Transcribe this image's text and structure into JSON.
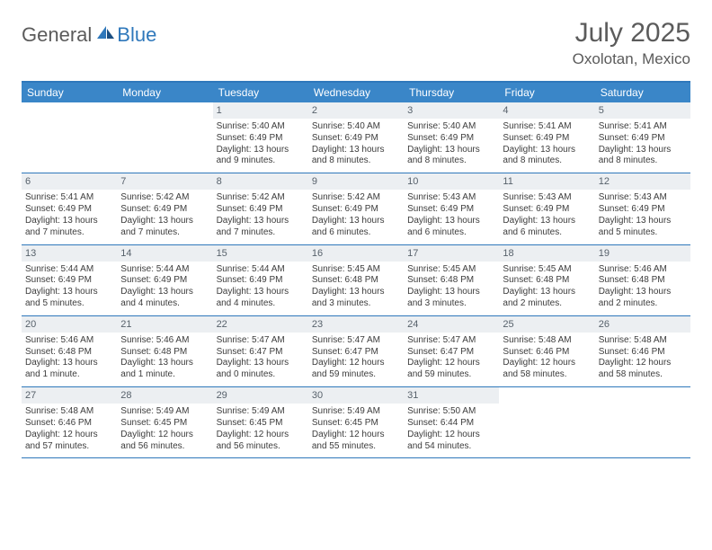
{
  "logo": {
    "general": "General",
    "blue": "Blue"
  },
  "title": "July 2025",
  "location": "Oxolotan, Mexico",
  "colors": {
    "header_bar": "#3a86c8",
    "rule": "#2f78bb",
    "daynum_bg": "#eceff2",
    "text": "#3c3c3c",
    "muted": "#5b5b5b"
  },
  "dow": [
    "Sunday",
    "Monday",
    "Tuesday",
    "Wednesday",
    "Thursday",
    "Friday",
    "Saturday"
  ],
  "weeks": [
    [
      null,
      null,
      {
        "n": "1",
        "sr": "5:40 AM",
        "ss": "6:49 PM",
        "dl1": "Daylight: 13 hours",
        "dl2": "and 9 minutes."
      },
      {
        "n": "2",
        "sr": "5:40 AM",
        "ss": "6:49 PM",
        "dl1": "Daylight: 13 hours",
        "dl2": "and 8 minutes."
      },
      {
        "n": "3",
        "sr": "5:40 AM",
        "ss": "6:49 PM",
        "dl1": "Daylight: 13 hours",
        "dl2": "and 8 minutes."
      },
      {
        "n": "4",
        "sr": "5:41 AM",
        "ss": "6:49 PM",
        "dl1": "Daylight: 13 hours",
        "dl2": "and 8 minutes."
      },
      {
        "n": "5",
        "sr": "5:41 AM",
        "ss": "6:49 PM",
        "dl1": "Daylight: 13 hours",
        "dl2": "and 8 minutes."
      }
    ],
    [
      {
        "n": "6",
        "sr": "5:41 AM",
        "ss": "6:49 PM",
        "dl1": "Daylight: 13 hours",
        "dl2": "and 7 minutes."
      },
      {
        "n": "7",
        "sr": "5:42 AM",
        "ss": "6:49 PM",
        "dl1": "Daylight: 13 hours",
        "dl2": "and 7 minutes."
      },
      {
        "n": "8",
        "sr": "5:42 AM",
        "ss": "6:49 PM",
        "dl1": "Daylight: 13 hours",
        "dl2": "and 7 minutes."
      },
      {
        "n": "9",
        "sr": "5:42 AM",
        "ss": "6:49 PM",
        "dl1": "Daylight: 13 hours",
        "dl2": "and 6 minutes."
      },
      {
        "n": "10",
        "sr": "5:43 AM",
        "ss": "6:49 PM",
        "dl1": "Daylight: 13 hours",
        "dl2": "and 6 minutes."
      },
      {
        "n": "11",
        "sr": "5:43 AM",
        "ss": "6:49 PM",
        "dl1": "Daylight: 13 hours",
        "dl2": "and 6 minutes."
      },
      {
        "n": "12",
        "sr": "5:43 AM",
        "ss": "6:49 PM",
        "dl1": "Daylight: 13 hours",
        "dl2": "and 5 minutes."
      }
    ],
    [
      {
        "n": "13",
        "sr": "5:44 AM",
        "ss": "6:49 PM",
        "dl1": "Daylight: 13 hours",
        "dl2": "and 5 minutes."
      },
      {
        "n": "14",
        "sr": "5:44 AM",
        "ss": "6:49 PM",
        "dl1": "Daylight: 13 hours",
        "dl2": "and 4 minutes."
      },
      {
        "n": "15",
        "sr": "5:44 AM",
        "ss": "6:49 PM",
        "dl1": "Daylight: 13 hours",
        "dl2": "and 4 minutes."
      },
      {
        "n": "16",
        "sr": "5:45 AM",
        "ss": "6:48 PM",
        "dl1": "Daylight: 13 hours",
        "dl2": "and 3 minutes."
      },
      {
        "n": "17",
        "sr": "5:45 AM",
        "ss": "6:48 PM",
        "dl1": "Daylight: 13 hours",
        "dl2": "and 3 minutes."
      },
      {
        "n": "18",
        "sr": "5:45 AM",
        "ss": "6:48 PM",
        "dl1": "Daylight: 13 hours",
        "dl2": "and 2 minutes."
      },
      {
        "n": "19",
        "sr": "5:46 AM",
        "ss": "6:48 PM",
        "dl1": "Daylight: 13 hours",
        "dl2": "and 2 minutes."
      }
    ],
    [
      {
        "n": "20",
        "sr": "5:46 AM",
        "ss": "6:48 PM",
        "dl1": "Daylight: 13 hours",
        "dl2": "and 1 minute."
      },
      {
        "n": "21",
        "sr": "5:46 AM",
        "ss": "6:48 PM",
        "dl1": "Daylight: 13 hours",
        "dl2": "and 1 minute."
      },
      {
        "n": "22",
        "sr": "5:47 AM",
        "ss": "6:47 PM",
        "dl1": "Daylight: 13 hours",
        "dl2": "and 0 minutes."
      },
      {
        "n": "23",
        "sr": "5:47 AM",
        "ss": "6:47 PM",
        "dl1": "Daylight: 12 hours",
        "dl2": "and 59 minutes."
      },
      {
        "n": "24",
        "sr": "5:47 AM",
        "ss": "6:47 PM",
        "dl1": "Daylight: 12 hours",
        "dl2": "and 59 minutes."
      },
      {
        "n": "25",
        "sr": "5:48 AM",
        "ss": "6:46 PM",
        "dl1": "Daylight: 12 hours",
        "dl2": "and 58 minutes."
      },
      {
        "n": "26",
        "sr": "5:48 AM",
        "ss": "6:46 PM",
        "dl1": "Daylight: 12 hours",
        "dl2": "and 58 minutes."
      }
    ],
    [
      {
        "n": "27",
        "sr": "5:48 AM",
        "ss": "6:46 PM",
        "dl1": "Daylight: 12 hours",
        "dl2": "and 57 minutes."
      },
      {
        "n": "28",
        "sr": "5:49 AM",
        "ss": "6:45 PM",
        "dl1": "Daylight: 12 hours",
        "dl2": "and 56 minutes."
      },
      {
        "n": "29",
        "sr": "5:49 AM",
        "ss": "6:45 PM",
        "dl1": "Daylight: 12 hours",
        "dl2": "and 56 minutes."
      },
      {
        "n": "30",
        "sr": "5:49 AM",
        "ss": "6:45 PM",
        "dl1": "Daylight: 12 hours",
        "dl2": "and 55 minutes."
      },
      {
        "n": "31",
        "sr": "5:50 AM",
        "ss": "6:44 PM",
        "dl1": "Daylight: 12 hours",
        "dl2": "and 54 minutes."
      },
      null,
      null
    ]
  ],
  "labels": {
    "sunrise": "Sunrise: ",
    "sunset": "Sunset: "
  }
}
